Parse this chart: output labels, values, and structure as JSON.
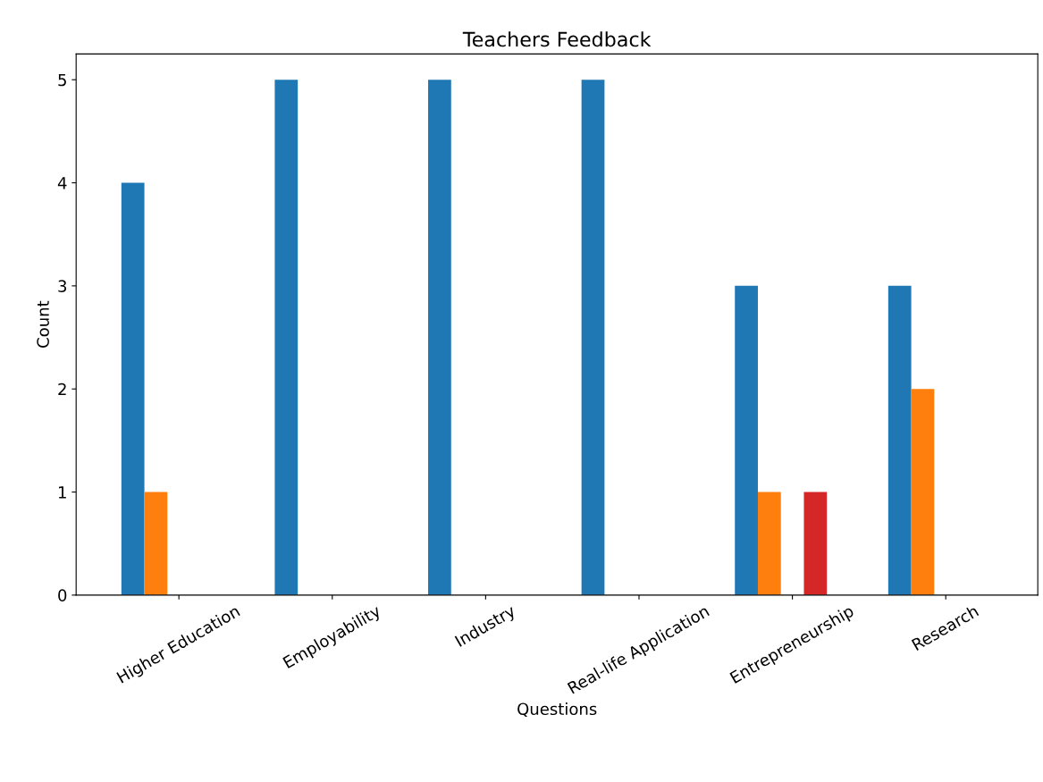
{
  "chart_data": {
    "type": "bar",
    "title": "Teachers Feedback",
    "xlabel": "Questions",
    "ylabel": "Count",
    "categories": [
      "Higher Education",
      "Employability",
      "Industry",
      "Real-life Application",
      "Entrepreneurship",
      "Research"
    ],
    "series": [
      {
        "color": "#1f77b4",
        "values": [
          4,
          5,
          5,
          5,
          3,
          3
        ]
      },
      {
        "color": "#ff7f0e",
        "values": [
          1,
          0,
          0,
          0,
          1,
          2
        ]
      },
      {
        "color": "#2ca02c",
        "values": [
          0,
          0,
          0,
          0,
          0,
          0
        ]
      },
      {
        "color": "#d62728",
        "values": [
          0,
          0,
          0,
          0,
          1,
          0
        ]
      },
      {
        "color": "#9467bd",
        "values": [
          0,
          0,
          0,
          0,
          0,
          0
        ]
      }
    ],
    "ylim": [
      0,
      5.25
    ],
    "yticks": [
      0,
      1,
      2,
      3,
      4,
      5
    ],
    "grid": false,
    "legend": false
  }
}
